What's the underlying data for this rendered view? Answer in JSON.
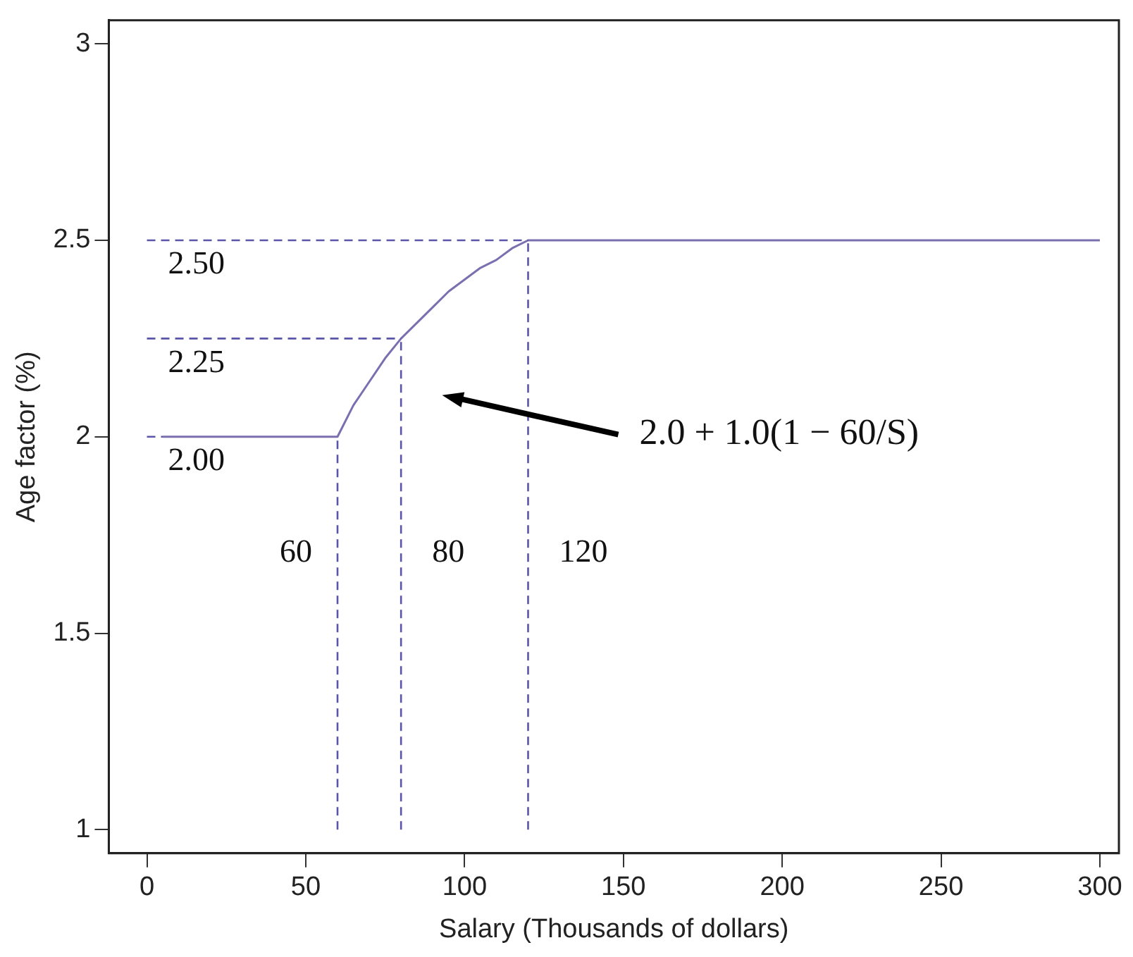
{
  "chart_data": {
    "type": "line",
    "xlabel": "Salary (Thousands of dollars)",
    "ylabel": "Age factor (%)",
    "xlim": [
      -12,
      306
    ],
    "ylim": [
      0.94,
      3.06
    ],
    "xticks": [
      0,
      50,
      100,
      150,
      200,
      250,
      300
    ],
    "yticks": [
      1,
      1.5,
      2,
      2.5,
      3
    ],
    "series": [
      {
        "color": "#7b6fb0",
        "x": [
          5,
          60,
          65,
          70,
          75,
          80,
          85,
          90,
          95,
          100,
          105,
          110,
          115,
          120,
          300
        ],
        "values": [
          2,
          2,
          2.08,
          2.14,
          2.2,
          2.25,
          2.29,
          2.33,
          2.37,
          2.4,
          2.43,
          2.45,
          2.48,
          2.5,
          2.5
        ]
      }
    ],
    "ref_lines": [
      {
        "axis": "y",
        "value": 2.5,
        "label": "2.50",
        "color": "#5a55a8",
        "line_style": "dashed"
      },
      {
        "axis": "y",
        "value": 2.25,
        "label": "2.25",
        "color": "#5a55a8",
        "line_style": "dashed"
      },
      {
        "axis": "y",
        "value": 2,
        "label": "2.00",
        "color": "#5a55a8",
        "line_style": "dashed"
      },
      {
        "axis": "x",
        "value": 60,
        "label": "60",
        "color": "#5a55a8",
        "line_style": "dashed"
      },
      {
        "axis": "x",
        "value": 80,
        "label": "80",
        "color": "#5a55a8",
        "line_style": "dashed"
      },
      {
        "axis": "x",
        "value": 120,
        "label": "120",
        "color": "#5a55a8",
        "line_style": "dashed"
      }
    ],
    "annotations": [
      "2.0 + 1.0(1 − 60/S)"
    ],
    "grid": false,
    "legend": false,
    "marker": "none",
    "line_style": "solid"
  }
}
